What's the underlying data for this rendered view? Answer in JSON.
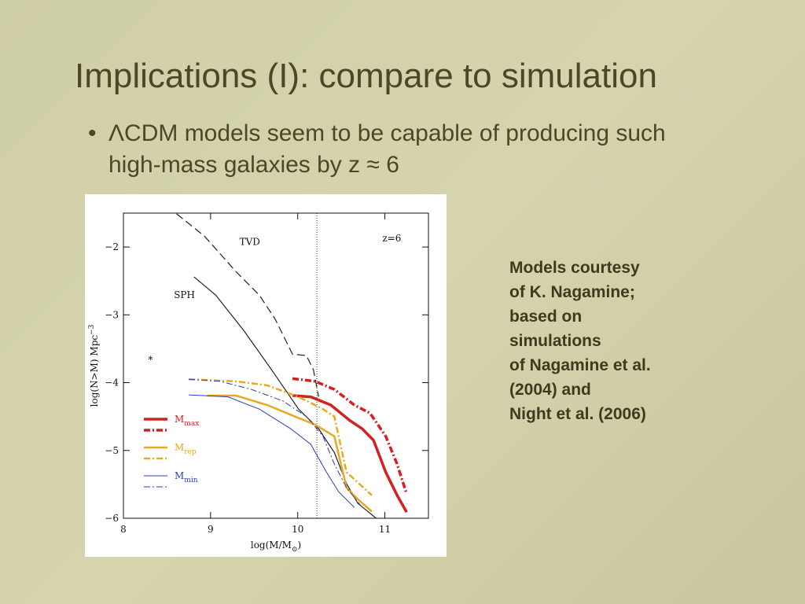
{
  "slide": {
    "title": "Implications (I): compare to simulation",
    "bullet": "ΛCDM models seem to be capable of producing such high-mass galaxies by z ≈ 6",
    "note": [
      "Models courtesy",
      "of K. Nagamine;",
      "based on",
      "simulations",
      "of Nagamine et al.",
      "(2004) and",
      "Night et al. (2006)"
    ]
  },
  "chart_data": {
    "type": "line",
    "x_label": {
      "main": "log(M/M",
      "sub": "⊙",
      "end": ")"
    },
    "y_label": {
      "main": "log(N>M) Mpc",
      "sup": "−3"
    },
    "xlim": [
      8,
      11.5
    ],
    "ylim": [
      -6,
      -1.5
    ],
    "xticks": [
      8,
      9,
      10,
      11
    ],
    "yticks": [
      {
        "value": -6,
        "label": "−6"
      },
      {
        "value": -5,
        "label": "−5"
      },
      {
        "value": -4,
        "label": "−4"
      },
      {
        "value": -3,
        "label": "−3"
      },
      {
        "value": -2,
        "label": "−2"
      }
    ],
    "vline": 10.22,
    "marker": {
      "x": 8.31,
      "y": -3.65,
      "label": "*"
    },
    "annotations": [
      {
        "text": "TVD",
        "x": 9.45,
        "y": -1.97
      },
      {
        "text": "SPH",
        "x": 8.7,
        "y": -2.75
      },
      {
        "text": "z=6",
        "x": 11.08,
        "y": -1.92
      }
    ],
    "legend": [
      {
        "main": "M",
        "sub": "max",
        "color": "#d42020"
      },
      {
        "main": "M",
        "sub": "rep",
        "color": "#e8a822"
      },
      {
        "main": "M",
        "sub": "min",
        "color": "#2a3ec0"
      }
    ],
    "series": [
      {
        "style": "dashed",
        "color": "#222222",
        "x": [
          8.61,
          8.93,
          9.29,
          9.56,
          9.74,
          9.94,
          10.1,
          10.18,
          10.24
        ],
        "values": [
          -1.51,
          -1.84,
          -2.36,
          -2.71,
          -3.06,
          -3.58,
          -3.6,
          -3.81,
          -4.21
        ]
      },
      {
        "style": "solid",
        "color": "#222222",
        "x": [
          8.81,
          9.06,
          9.38,
          9.7,
          10.01,
          10.24,
          10.42,
          10.56,
          10.69,
          10.9
        ],
        "values": [
          -2.44,
          -2.71,
          -3.23,
          -3.81,
          -4.39,
          -4.68,
          -5.03,
          -5.49,
          -5.78,
          -6.0
        ]
      },
      {
        "style": "solid",
        "color": "#d42020",
        "legend": 0,
        "x": [
          9.94,
          10.15,
          10.38,
          10.6,
          10.74,
          10.87,
          11.01,
          11.14,
          11.25
        ],
        "values": [
          -4.19,
          -4.21,
          -4.33,
          -4.56,
          -4.68,
          -4.85,
          -5.32,
          -5.66,
          -5.91
        ]
      },
      {
        "style": "dashdot",
        "color": "#d42020",
        "legend": 0,
        "x": [
          9.94,
          10.2,
          10.42,
          10.65,
          10.83,
          11.01,
          11.14,
          11.25
        ],
        "values": [
          -3.94,
          -3.98,
          -4.1,
          -4.33,
          -4.45,
          -4.79,
          -5.2,
          -5.64
        ]
      },
      {
        "style": "solid",
        "color": "#e8a822",
        "legend": 1,
        "x": [
          8.96,
          9.29,
          9.65,
          9.97,
          10.2,
          10.42,
          10.56,
          10.69,
          10.85
        ],
        "values": [
          -4.19,
          -4.19,
          -4.33,
          -4.5,
          -4.62,
          -4.79,
          -5.55,
          -5.72,
          -5.9
        ]
      },
      {
        "style": "dashdot",
        "color": "#e8a822",
        "legend": 1,
        "x": [
          8.75,
          9.29,
          9.65,
          10.01,
          10.29,
          10.42,
          10.56,
          10.85
        ],
        "values": [
          -3.95,
          -3.98,
          -4.04,
          -4.21,
          -4.39,
          -4.5,
          -5.32,
          -5.66
        ]
      },
      {
        "style": "solid",
        "color": "#2a3ec0",
        "legend": 2,
        "x": [
          8.75,
          9.2,
          9.56,
          9.92,
          10.15,
          10.33,
          10.47,
          10.65
        ],
        "values": [
          -4.18,
          -4.21,
          -4.39,
          -4.68,
          -4.91,
          -5.32,
          -5.61,
          -5.84
        ]
      },
      {
        "style": "dashdot",
        "color": "#2a3ec0",
        "legend": 2,
        "x": [
          8.75,
          9.11,
          9.47,
          9.83,
          10.1,
          10.29,
          10.42,
          10.56,
          10.74
        ],
        "values": [
          -3.95,
          -3.98,
          -4.1,
          -4.27,
          -4.5,
          -4.79,
          -5.2,
          -5.55,
          -5.84
        ]
      }
    ]
  }
}
